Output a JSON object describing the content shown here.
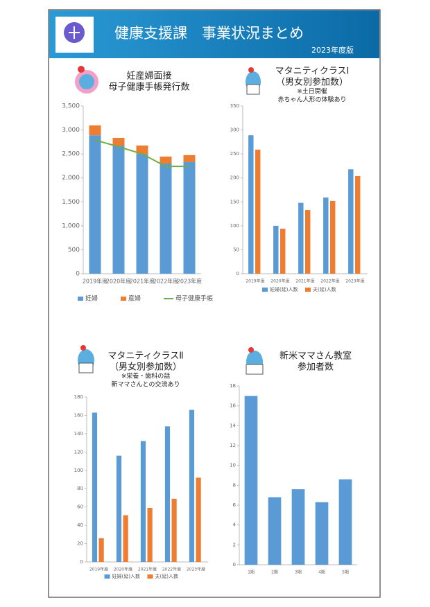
{
  "header": {
    "title": "健康支援課　事業状況まとめ",
    "subtitle": "2023年度版"
  },
  "chart_data": [
    {
      "type": "bar",
      "stacked": true,
      "title": "妊産婦面接",
      "subtitle": "母子健康手帳発行数",
      "categories": [
        "2019年度",
        "2020年度",
        "2021年度",
        "2022年度",
        "2023年度"
      ],
      "series": [
        {
          "name": "妊婦",
          "color": "#5b9bd5",
          "values": [
            2890,
            2675,
            2500,
            2300,
            2330
          ]
        },
        {
          "name": "産婦",
          "color": "#ed7d31",
          "values": [
            205,
            160,
            175,
            145,
            145
          ]
        },
        {
          "name": "母子健康手帳",
          "color": "#70ad47",
          "type": "line",
          "values": [
            2790,
            2650,
            2500,
            2240,
            2240
          ]
        }
      ],
      "ylim": [
        0,
        3500
      ],
      "yticks": [
        0,
        500,
        {
          "value": 1000,
          "label": "1,000"
        },
        {
          "value": 1500,
          "label": "1,500"
        },
        {
          "value": 2000,
          "label": "2,000"
        },
        {
          "value": 2500,
          "label": "2,500"
        },
        {
          "value": 3000,
          "label": "3,000"
        },
        {
          "value": 3500,
          "label": "3,500"
        }
      ]
    },
    {
      "type": "bar",
      "title": "マタニティクラスⅠ",
      "subtitle": "（男女別参加数）",
      "notes": [
        "※土日開催",
        "赤ちゃん人形の体験あり"
      ],
      "categories": [
        "2019年度",
        "2020年度",
        "2021年度",
        "2022年度",
        "2023年度"
      ],
      "series": [
        {
          "name": "妊婦(延)人数",
          "color": "#5b9bd5",
          "values": [
            289,
            100,
            148,
            159,
            218
          ]
        },
        {
          "name": "夫(延)人数",
          "color": "#ed7d31",
          "values": [
            259,
            94,
            133,
            152,
            204
          ]
        }
      ],
      "ylim": [
        0,
        350
      ],
      "yticks": [
        0,
        50,
        100,
        150,
        200,
        250,
        300,
        350
      ]
    },
    {
      "type": "bar",
      "title": "マタニティクラスⅡ",
      "subtitle": "（男女別参加数）",
      "notes": [
        "※栄養・歯科の話",
        "新ママさんとの交流あり"
      ],
      "categories": [
        "2019年度",
        "2020年度",
        "2021年度",
        "2022年度",
        "2023年度"
      ],
      "series": [
        {
          "name": "妊婦(延)人数",
          "color": "#5b9bd5",
          "values": [
            163,
            116,
            132,
            148,
            166
          ]
        },
        {
          "name": "夫(延)人数",
          "color": "#ed7d31",
          "values": [
            26,
            51,
            59,
            69,
            92
          ]
        }
      ],
      "ylim": [
        0,
        180
      ],
      "yticks": [
        0,
        20,
        40,
        60,
        80,
        100,
        120,
        140,
        160,
        180
      ]
    },
    {
      "type": "bar",
      "title": "新米ママさん教室",
      "subtitle": "参加者数",
      "categories": [
        "1期",
        "2期",
        "3期",
        "4期",
        "5期"
      ],
      "color": "#5b9bd5",
      "values": [
        17,
        6.8,
        7.6,
        6.3,
        8.6
      ],
      "ylim": [
        0,
        18
      ],
      "yticks": [
        0,
        2,
        4,
        6,
        8,
        10,
        12,
        14,
        16,
        18
      ]
    }
  ]
}
